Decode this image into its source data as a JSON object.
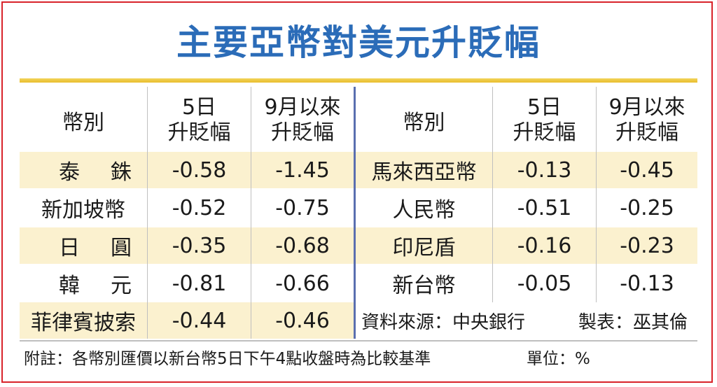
{
  "title": "主要亞幣對美元升貶幅",
  "headers": {
    "currency": "幣別",
    "five_day_line1": "5日",
    "five_day_line2": "升貶幅",
    "since_sep_line1": "9月以來",
    "since_sep_line2": "升貶幅"
  },
  "left_rows": [
    {
      "name_a": "泰",
      "name_b": "銖",
      "five_day": "-0.58",
      "since_sep": "-1.45"
    },
    {
      "name": "新加坡幣",
      "five_day": "-0.52",
      "since_sep": "-0.75"
    },
    {
      "name_a": "日",
      "name_b": "圓",
      "five_day": "-0.35",
      "since_sep": "-0.68"
    },
    {
      "name_a": "韓",
      "name_b": "元",
      "five_day": "-0.81",
      "since_sep": "-0.66"
    },
    {
      "name": "菲律賓披索",
      "five_day": "-0.44",
      "since_sep": "-0.46"
    }
  ],
  "right_rows": [
    {
      "name": "馬來西亞幣",
      "five_day": "-0.13",
      "since_sep": "-0.45"
    },
    {
      "name": "人民幣",
      "five_day": "-0.51",
      "since_sep": "-0.25"
    },
    {
      "name": "印尼盾",
      "five_day": "-0.16",
      "since_sep": "-0.23"
    },
    {
      "name": "新台幣",
      "five_day": "-0.05",
      "since_sep": "-0.13"
    }
  ],
  "source": "資料來源：中央銀行",
  "made_by": "製表：巫其倫",
  "note": "附註：各幣別匯價以新台幣5日下午4點收盤時為比較基準",
  "unit": "單位：%",
  "colors": {
    "title": "#2b6cb8",
    "border": "#d8232a",
    "gold_rule": "#e9bd2c",
    "row_highlight": "#fbf1cf",
    "divider": "#5a6fb0"
  }
}
